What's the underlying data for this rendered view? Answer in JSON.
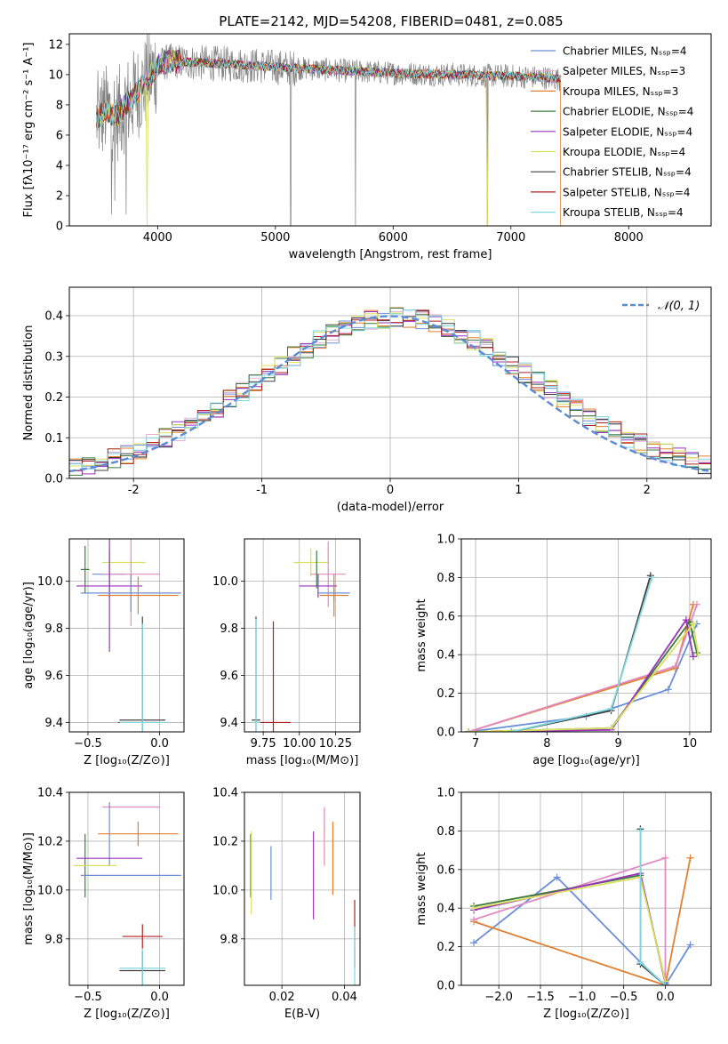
{
  "chart_data": [
    {
      "id": "spectrum",
      "type": "line",
      "title": "PLATE=2142, MJD=54208, FIBERID=0481, z=0.085",
      "xlabel": "wavelength [Angstrom, rest frame]",
      "ylabel": "Flux [fλ10⁻¹⁷ erg cm⁻² s⁻¹ A⁻¹]",
      "xlim": [
        3250,
        8700
      ],
      "ylim": [
        0,
        12.7
      ],
      "xticks": [
        4000,
        5000,
        6000,
        7000,
        8000
      ],
      "yticks": [
        0,
        2,
        4,
        6,
        8,
        10,
        12
      ],
      "data_color": "#808080",
      "continuum": {
        "x": [
          3480,
          3550,
          3650,
          3800,
          3900,
          4000,
          4100,
          4300,
          4600,
          5000,
          5500,
          6000,
          6500,
          7000,
          7300,
          7420
        ],
        "y": [
          7.0,
          7.6,
          7.3,
          8.6,
          9.5,
          10.6,
          10.9,
          10.8,
          10.7,
          10.5,
          10.3,
          10.1,
          10.0,
          9.9,
          9.8,
          9.7
        ]
      },
      "legend": [
        {
          "label": "Chabrier MILES, Nₛₛₚ=4",
          "color": "#6a8fd8"
        },
        {
          "label": "Salpeter MILES, Nₛₛₚ=3",
          "color": "#e2b0d6"
        },
        {
          "label": "Kroupa MILES, Nₛₛₚ=3",
          "color": "#e08030"
        },
        {
          "label": "Chabrier ELODIE, Nₛₛₚ=4",
          "color": "#3c7a3c"
        },
        {
          "label": "Salpeter ELODIE, Nₛₛₚ=4",
          "color": "#9933bb"
        },
        {
          "label": "Kroupa ELODIE, Nₛₛₚ=4",
          "color": "#d8e060"
        },
        {
          "label": "Chabrier STELIB, Nₛₛₚ=4",
          "color": "#404040"
        },
        {
          "label": "Salpeter STELIB, Nₛₛₚ=4",
          "color": "#b02020"
        },
        {
          "label": "Kroupa STELIB, Nₛₛₚ=4",
          "color": "#80d8e0"
        }
      ]
    },
    {
      "id": "residuals",
      "type": "line",
      "xlabel": "(data-model)/error",
      "ylabel": "Normed distribution",
      "xlim": [
        -2.5,
        2.5
      ],
      "ylim": [
        0,
        0.47
      ],
      "xticks": [
        -2,
        -1,
        0,
        1,
        2
      ],
      "yticks": [
        0.0,
        0.1,
        0.2,
        0.3,
        0.4
      ],
      "legend": "𝒩(0, 1)",
      "legend_color": "#5b8bd6",
      "bin_edges_start": -2.5,
      "bin_width": 0.1
    },
    {
      "id": "age-vs-Z",
      "type": "scatter",
      "xlabel": "Z [log₁₀(Z/Z⊙)]",
      "ylabel": "age  [log₁₀(age/yr)]",
      "xlim": [
        -0.63,
        0.17
      ],
      "ylim": [
        9.36,
        10.18
      ],
      "xticks": [
        -0.5,
        0.0
      ],
      "xticklabels": [
        "−0.5",
        "0.0"
      ],
      "yticks": [
        9.4,
        9.6,
        9.8,
        10.0
      ],
      "points": [
        {
          "x": -0.25,
          "y": 10.08,
          "xerr": 0.15,
          "yerr": 0.0,
          "color": "#d8e060"
        },
        {
          "x": -0.35,
          "y": 10.03,
          "xerr": 0.12,
          "yerr": 0.1,
          "color": "#6a8fd8"
        },
        {
          "x": -0.2,
          "y": 10.03,
          "xerr": 0.2,
          "yerr": 0.22,
          "color": "#e28ac0"
        },
        {
          "x": -0.35,
          "y": 9.98,
          "xerr": 0.23,
          "yerr": 0.28,
          "color": "#9933bb"
        },
        {
          "x": -0.2,
          "y": 9.95,
          "xerr": 0.35,
          "yerr": 0.08,
          "color": "#6a8fd8"
        },
        {
          "x": -0.15,
          "y": 9.94,
          "xerr": 0.28,
          "yerr": 0.08,
          "color": "#e08030"
        },
        {
          "x": -0.52,
          "y": 10.05,
          "xerr": 0.03,
          "yerr": 0.1,
          "color": "#3c7a3c"
        },
        {
          "x": -0.15,
          "y": 9.4,
          "xerr": 0.14,
          "yerr": 0.0,
          "color": "#b02020"
        },
        {
          "x": -0.12,
          "y": 9.41,
          "xerr": 0.16,
          "yerr": 0.44,
          "color": "#404040"
        },
        {
          "x": -0.12,
          "y": 9.4,
          "xerr": 0.16,
          "yerr": 0.42,
          "color": "#80d8e0"
        }
      ]
    },
    {
      "id": "age-vs-mass",
      "type": "scatter",
      "xlabel": "mass [log₁₀(M/M⊙)]",
      "xlim": [
        9.62,
        10.42
      ],
      "ylim": [
        9.36,
        10.18
      ],
      "xticks": [
        9.75,
        10.0,
        10.25
      ],
      "xticklabels": [
        "9.75",
        "10.00",
        "10.25"
      ],
      "yticks": [
        9.4,
        9.6,
        9.8,
        10.0
      ],
      "points": [
        {
          "x": 10.08,
          "y": 10.08,
          "xerr": 0.12,
          "yerr": 0.06,
          "color": "#d8e060"
        },
        {
          "x": 10.2,
          "y": 10.03,
          "xerr": 0.12,
          "yerr": 0.14,
          "color": "#e28ac0"
        },
        {
          "x": 10.13,
          "y": 9.98,
          "xerr": 0.13,
          "yerr": 0.05,
          "color": "#9933bb"
        },
        {
          "x": 10.24,
          "y": 9.95,
          "xerr": 0.11,
          "yerr": 0.04,
          "color": "#6a8fd8"
        },
        {
          "x": 10.24,
          "y": 9.94,
          "xerr": 0.1,
          "yerr": 0.09,
          "color": "#e08030"
        },
        {
          "x": 10.12,
          "y": 10.05,
          "xerr": 0.0,
          "yerr": 0.08,
          "color": "#3c7a3c"
        },
        {
          "x": 9.82,
          "y": 9.4,
          "xerr": 0.12,
          "yerr": 0.43,
          "color": "#b02020"
        },
        {
          "x": 9.7,
          "y": 9.41,
          "xerr": 0.03,
          "yerr": 0.44,
          "color": "#404040"
        },
        {
          "x": 9.7,
          "y": 9.4,
          "xerr": 0.03,
          "yerr": 0.44,
          "color": "#80d8e0"
        }
      ]
    },
    {
      "id": "mass-weight-vs-age",
      "type": "line",
      "xlabel": "age  [log₁₀(age/yr)]",
      "ylabel": "mass weight",
      "xlim": [
        6.8,
        10.3
      ],
      "ylim": [
        0,
        1.0
      ],
      "xticks": [
        7,
        8,
        9,
        10
      ],
      "yticks": [
        0.0,
        0.2,
        0.4,
        0.6,
        0.8,
        1.0
      ],
      "series": [
        {
          "color": "#6a8fd8",
          "x": [
            6.9,
            8.55,
            8.9,
            9.7,
            10.1
          ],
          "y": [
            0.0,
            0.08,
            0.12,
            0.22,
            0.56
          ]
        },
        {
          "color": "#e08030",
          "x": [
            6.9,
            9.8,
            10.05
          ],
          "y": [
            0.0,
            0.33,
            0.66
          ]
        },
        {
          "color": "#e28ac0",
          "x": [
            6.9,
            9.8,
            10.1
          ],
          "y": [
            0.0,
            0.34,
            0.66
          ]
        },
        {
          "color": "#3c7a3c",
          "x": [
            6.9,
            8.9,
            10.0,
            10.1
          ],
          "y": [
            0.0,
            0.02,
            0.57,
            0.41
          ]
        },
        {
          "color": "#9933bb",
          "x": [
            6.9,
            8.9,
            9.95,
            10.05
          ],
          "y": [
            0.0,
            0.01,
            0.58,
            0.39
          ]
        },
        {
          "color": "#d8e060",
          "x": [
            6.9,
            8.9,
            10.05,
            10.12
          ],
          "y": [
            0.0,
            0.02,
            0.56,
            0.4
          ]
        },
        {
          "color": "#404040",
          "x": [
            7.5,
            8.9,
            9.45
          ],
          "y": [
            0.0,
            0.11,
            0.81
          ]
        },
        {
          "color": "#80d8e0",
          "x": [
            7.5,
            8.9,
            9.47
          ],
          "y": [
            0.0,
            0.12,
            0.8
          ]
        }
      ]
    },
    {
      "id": "mass-vs-Z",
      "type": "scatter",
      "xlabel": "Z [log₁₀(Z/Z⊙)]",
      "ylabel": "mass [log₁₀(M/M⊙)]",
      "xlim": [
        -0.63,
        0.17
      ],
      "ylim": [
        9.61,
        10.4
      ],
      "xticks": [
        -0.5,
        0.0
      ],
      "xticklabels": [
        "−0.5",
        "0.0"
      ],
      "yticks": [
        9.8,
        10.0,
        10.2,
        10.4
      ],
      "points": [
        {
          "x": -0.2,
          "y": 10.34,
          "xerr": 0.2,
          "yerr": 0.0,
          "color": "#e28ac0"
        },
        {
          "x": -0.35,
          "y": 10.23,
          "xerr": 0.0,
          "yerr": 0.13,
          "color": "#6a8fd8"
        },
        {
          "x": -0.15,
          "y": 10.23,
          "xerr": 0.28,
          "yerr": 0.05,
          "color": "#e08030"
        },
        {
          "x": -0.52,
          "y": 10.1,
          "xerr": 0.0,
          "yerr": 0.13,
          "color": "#3c7a3c"
        },
        {
          "x": -0.35,
          "y": 10.13,
          "xerr": 0.23,
          "yerr": 0.0,
          "color": "#9933bb"
        },
        {
          "x": -0.45,
          "y": 10.1,
          "xerr": 0.15,
          "yerr": 0.0,
          "color": "#d8e060"
        },
        {
          "x": -0.2,
          "y": 10.06,
          "xerr": 0.35,
          "yerr": 0.0,
          "color": "#6a8fd8"
        },
        {
          "x": -0.12,
          "y": 9.81,
          "xerr": 0.14,
          "yerr": 0.05,
          "color": "#b02020"
        },
        {
          "x": -0.12,
          "y": 9.67,
          "xerr": 0.16,
          "yerr": 0.08,
          "color": "#404040"
        },
        {
          "x": -0.12,
          "y": 9.68,
          "xerr": 0.16,
          "yerr": 0.08,
          "color": "#80d8e0"
        }
      ]
    },
    {
      "id": "mass-vs-EBV",
      "type": "scatter",
      "xlabel": "E(B-V)",
      "xlim": [
        0.008,
        0.045
      ],
      "ylim": [
        9.61,
        10.4
      ],
      "xticks": [
        0.02,
        0.04
      ],
      "xticklabels": [
        "0.02",
        "0.04"
      ],
      "yticks": [
        9.8,
        10.0,
        10.2,
        10.4
      ],
      "points": [
        {
          "x": 0.0165,
          "y": 10.07,
          "yerr": 0.11,
          "color": "#6a8fd8"
        },
        {
          "x": 0.0336,
          "y": 10.22,
          "yerr": 0.12,
          "color": "#e28ac0"
        },
        {
          "x": 0.0363,
          "y": 10.13,
          "yerr": 0.15,
          "color": "#e08030"
        },
        {
          "x": 0.0301,
          "y": 10.06,
          "yerr": 0.18,
          "color": "#9933bb"
        },
        {
          "x": 0.01,
          "y": 10.1,
          "yerr": 0.13,
          "color": "#3c7a3c"
        },
        {
          "x": 0.0102,
          "y": 10.07,
          "yerr": 0.17,
          "color": "#d8e060"
        },
        {
          "x": 0.0433,
          "y": 9.82,
          "yerr": 0.14,
          "color": "#b02020"
        },
        {
          "x": 0.0433,
          "y": 9.73,
          "yerr": 0.12,
          "color": "#80d8e0"
        }
      ]
    },
    {
      "id": "mass-weight-vs-Z",
      "type": "line",
      "xlabel": "Z [log₁₀(Z/Z⊙)]",
      "ylabel": "mass weight",
      "xlim": [
        -2.45,
        0.55
      ],
      "ylim": [
        0,
        1.0
      ],
      "xticks": [
        -2.0,
        -1.5,
        -1.0,
        -0.5,
        0.0
      ],
      "xticklabels": [
        "−2.0",
        "−1.5",
        "−1.0",
        "−0.5",
        "0.0"
      ],
      "yticks": [
        0.0,
        0.2,
        0.4,
        0.6,
        0.8,
        1.0
      ],
      "series": [
        {
          "color": "#6a8fd8",
          "x": [
            -2.3,
            -1.3,
            -0.3,
            0.0,
            0.3
          ],
          "y": [
            0.22,
            0.56,
            0.12,
            0.0,
            0.21
          ]
        },
        {
          "color": "#e08030",
          "x": [
            -2.3,
            0.0,
            0.3
          ],
          "y": [
            0.33,
            0.0,
            0.66
          ]
        },
        {
          "color": "#e28ac0",
          "x": [
            -2.3,
            0.0,
            0.0
          ],
          "y": [
            0.34,
            0.66,
            0.0
          ]
        },
        {
          "color": "#3c7a3c",
          "x": [
            -2.3,
            -0.3,
            0.0
          ],
          "y": [
            0.41,
            0.57,
            0.02
          ]
        },
        {
          "color": "#9933bb",
          "x": [
            -2.3,
            -0.3,
            0.0
          ],
          "y": [
            0.39,
            0.58,
            0.01
          ]
        },
        {
          "color": "#d8e060",
          "x": [
            -2.3,
            -0.3,
            0.0
          ],
          "y": [
            0.4,
            0.56,
            0.02
          ]
        },
        {
          "color": "#404040",
          "x": [
            -0.3,
            -0.3,
            0.0
          ],
          "y": [
            0.81,
            0.11,
            0.0
          ]
        },
        {
          "color": "#80d8e0",
          "x": [
            -0.3,
            -0.3,
            0.0
          ],
          "y": [
            0.8,
            0.12,
            0.0
          ]
        }
      ]
    }
  ]
}
